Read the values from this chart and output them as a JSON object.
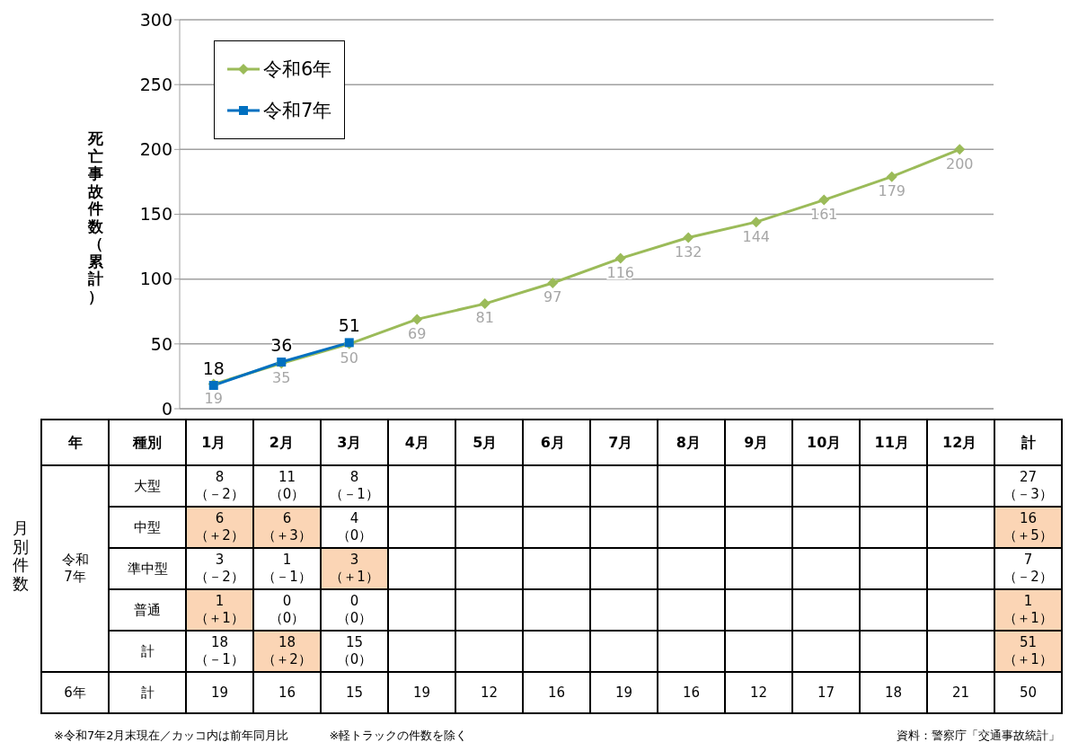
{
  "chart_data": [
    {
      "type": "line",
      "ylabel": "死亡事故件数（累計）",
      "categories": [
        "1月",
        "2月",
        "3月",
        "4月",
        "5月",
        "6月",
        "7月",
        "8月",
        "9月",
        "10月",
        "11月",
        "12月"
      ],
      "series": [
        {
          "name": "令和6年",
          "color": "#9bbb59",
          "marker": "diamond",
          "values": [
            19,
            35,
            50,
            69,
            81,
            97,
            116,
            132,
            144,
            161,
            179,
            200
          ]
        },
        {
          "name": "令和7年",
          "color": "#0070c0",
          "marker": "square",
          "values": [
            18,
            36,
            51,
            null,
            null,
            null,
            null,
            null,
            null,
            null,
            null,
            null
          ]
        }
      ],
      "ylim": [
        0,
        300
      ],
      "yticks": [
        0,
        50,
        100,
        150,
        200,
        250,
        300
      ],
      "grid": "y",
      "legend": "top left",
      "data_labels": true,
      "line_style": "solid"
    },
    {
      "type": "other",
      "ylabel": "月別件数",
      "cell_labels": [
        [
          "年",
          "種別",
          null,
          null,
          null,
          null,
          null,
          null,
          null,
          null,
          null,
          null,
          null,
          null,
          "計"
        ],
        [
          "令和\n7年",
          "大型",
          "8\n（－2）",
          "11\n（0）",
          "8\n（－1）",
          null,
          null,
          null,
          null,
          null,
          null,
          null,
          null,
          null,
          "27\n（－3）"
        ],
        [
          null,
          "中型",
          "6\n（＋2）",
          "6\n（＋3）",
          "4\n（0）",
          null,
          null,
          null,
          null,
          null,
          null,
          null,
          null,
          null,
          "16\n（＋5）"
        ],
        [
          null,
          "準中型",
          "3\n（－2）",
          "1\n（－1）",
          "3\n（＋1）",
          null,
          null,
          null,
          null,
          null,
          null,
          null,
          null,
          null,
          "7\n（－2）"
        ],
        [
          null,
          "普通",
          "1\n（＋1）",
          "0\n（0）",
          "0\n（0）",
          null,
          null,
          null,
          null,
          null,
          null,
          null,
          null,
          null,
          "1\n（＋1）"
        ],
        [
          null,
          "計",
          "18\n（－1）",
          "18\n（＋2）",
          "15\n（0）",
          null,
          null,
          null,
          null,
          null,
          null,
          null,
          null,
          null,
          "51\n（＋1）"
        ],
        [
          "6年",
          "計",
          "19",
          "16",
          "15",
          "19",
          "12",
          "16",
          "19",
          "16",
          "12",
          "17",
          "18",
          "21",
          "50"
        ]
      ],
      "colors": [
        [
          null,
          null,
          null,
          null,
          null,
          null,
          null,
          null,
          null,
          null,
          null,
          null,
          null,
          null,
          null
        ],
        [
          null,
          null,
          null,
          null,
          null,
          null,
          null,
          null,
          null,
          null,
          null,
          null,
          null,
          null,
          null
        ],
        [
          null,
          null,
          "#fbd5b5",
          "#fbd5b5",
          null,
          null,
          null,
          null,
          null,
          null,
          null,
          null,
          null,
          null,
          "#fbd5b5"
        ],
        [
          null,
          null,
          null,
          null,
          "#fbd5b5",
          null,
          null,
          null,
          null,
          null,
          null,
          null,
          null,
          null,
          null
        ],
        [
          null,
          null,
          "#fbd5b5",
          null,
          null,
          null,
          null,
          null,
          null,
          null,
          null,
          null,
          null,
          null,
          "#fbd5b5"
        ],
        [
          null,
          null,
          null,
          "#fbd5b5",
          null,
          null,
          null,
          null,
          null,
          null,
          null,
          null,
          null,
          null,
          "#fbd5b5"
        ],
        [
          null,
          null,
          null,
          null,
          null,
          null,
          null,
          null,
          null,
          null,
          null,
          null,
          null,
          null,
          null
        ]
      ],
      "annotations": [
        "※令和7年2月末現在／カッコ内は前年同月比",
        "※軽トラックの件数を除く",
        "資料：警察庁「交通事故統計」"
      ]
    }
  ]
}
